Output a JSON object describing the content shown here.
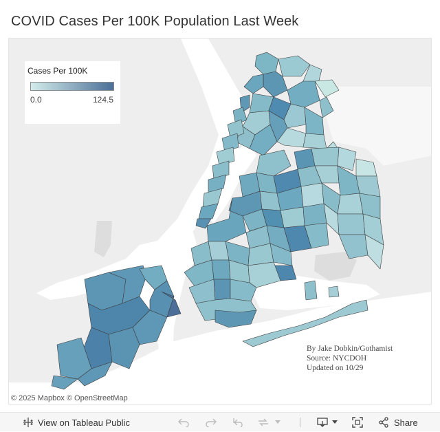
{
  "title": "COVID Cases Per 100K Population Last Week",
  "legend": {
    "title": "Cases Per 100K",
    "min_label": "0.0",
    "max_label": "124.5",
    "min": 0.0,
    "max": 124.5,
    "color_low": "#d2ecea",
    "color_high": "#4b6f98"
  },
  "credits": {
    "line1": "By Jake Dobkin/Gothamist",
    "line2": "Source: NYCDOH",
    "line3": "Updated on 10/29"
  },
  "attribution": "© 2025 Mapbox © OpenStreetMap",
  "colors": {
    "land": "#eeeeee",
    "water": "#ffffff",
    "park": "#dddddd",
    "border": "#3c3c3c"
  },
  "toolbar": {
    "view_label": "View on Tableau Public",
    "share_label": "Share",
    "icons": [
      "tableau-icon",
      "undo-icon",
      "redo-icon",
      "revert-icon",
      "refresh-icon",
      "download-icon",
      "fullscreen-icon",
      "share-icon"
    ]
  }
}
